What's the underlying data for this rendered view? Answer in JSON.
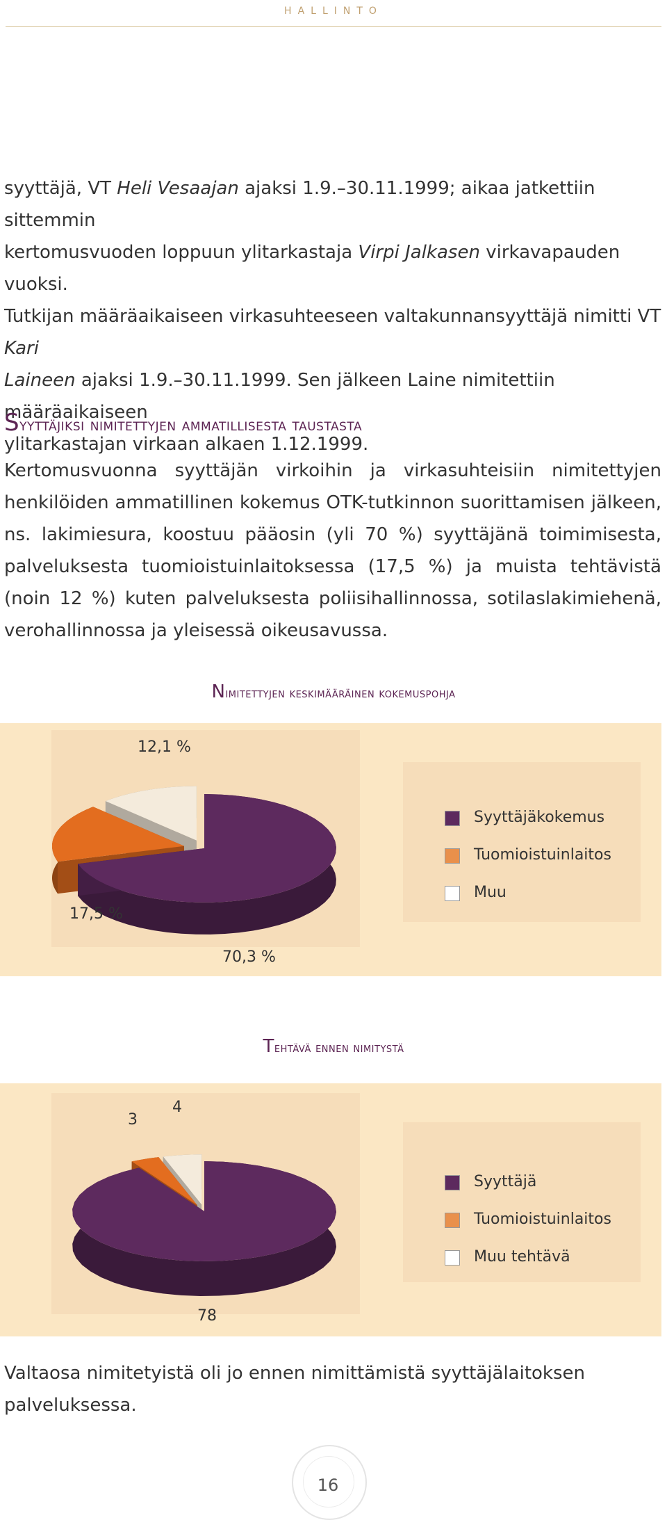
{
  "header": {
    "title": "HALLINTO"
  },
  "intro": {
    "lines": [
      [
        "syyttäjä, VT ",
        "Heli Vesaajan",
        " ajaksi 1.9.–30.11.1999; aikaa jatkettiin sittemmin"
      ],
      [
        "kertomusvuoden loppuun ylitarkastaja ",
        "Virpi Jalkasen",
        " virkavapauden vuoksi."
      ],
      [
        "Tutkijan määräaikaiseen virkasuhteeseen valtakunnansyyttäjä nimitti VT ",
        "Kari",
        ""
      ],
      [
        "",
        "Laineen",
        " ajaksi 1.9.–30.11.1999. Sen jälkeen Laine nimitettiin määräaikaiseen"
      ],
      [
        "ylitarkastajan virkaan alkaen 1.12.1999.",
        "",
        ""
      ]
    ]
  },
  "section": {
    "heading_first": "S",
    "heading_rest": "yyttäjiksi nimitettyjen ammatillisesta taustasta",
    "paragraph": "Kertomusvuonna syyttäjän virkoihin ja virkasuhteisiin nimitettyjen henkilöiden ammatillinen kokemus OTK-tutkinnon suorittamisen jälkeen, ns. lakimiesura, koostuu pääosin (yli 70 %) syyttäjänä toimimisesta, palveluksesta tuomioistuinlaitoksessa (17,5 %) ja muista tehtävistä (noin 12 %) kuten palveluksesta poliisihallinnossa, sotilaslakimiehenä, verohallinnossa ja yleisessä oikeusavussa."
  },
  "chart_data": [
    {
      "type": "pie",
      "title": "Nimitettyjen keskimääräinen kokemuspohja",
      "categories": [
        "Syyttäjäkokemus",
        "Tuomioistuinlaitos",
        "Muu"
      ],
      "values": [
        70.3,
        17.5,
        12.1
      ],
      "data_labels": [
        "70,3 %",
        "17,5 %",
        "12,1 %"
      ],
      "colors": [
        "#5d2a5e",
        "#e36d1f",
        "#f4ebdc"
      ],
      "legend_position": "right"
    },
    {
      "type": "pie",
      "title": "Tehtävä ennen nimitystä",
      "categories": [
        "Syyttäjä",
        "Tuomioistuinlaitos",
        "Muu tehtävä"
      ],
      "values": [
        78,
        3,
        4
      ],
      "data_labels": [
        "78",
        "3",
        "4"
      ],
      "colors": [
        "#5d2a5e",
        "#e36d1f",
        "#f4ebdc"
      ],
      "legend_position": "right"
    }
  ],
  "chart1_title_first": "N",
  "chart1_title_rest": "imitettyjen keskimääräinen kokemuspohja",
  "chart2_title_first": "T",
  "chart2_title_rest": "ehtävä ennen nimitystä",
  "conclusion": "Valtaosa nimitetyistä oli jo  ennen nimittämistä syyttäjälaitoksen palveluksessa.",
  "footer": {
    "page_number": "16"
  }
}
